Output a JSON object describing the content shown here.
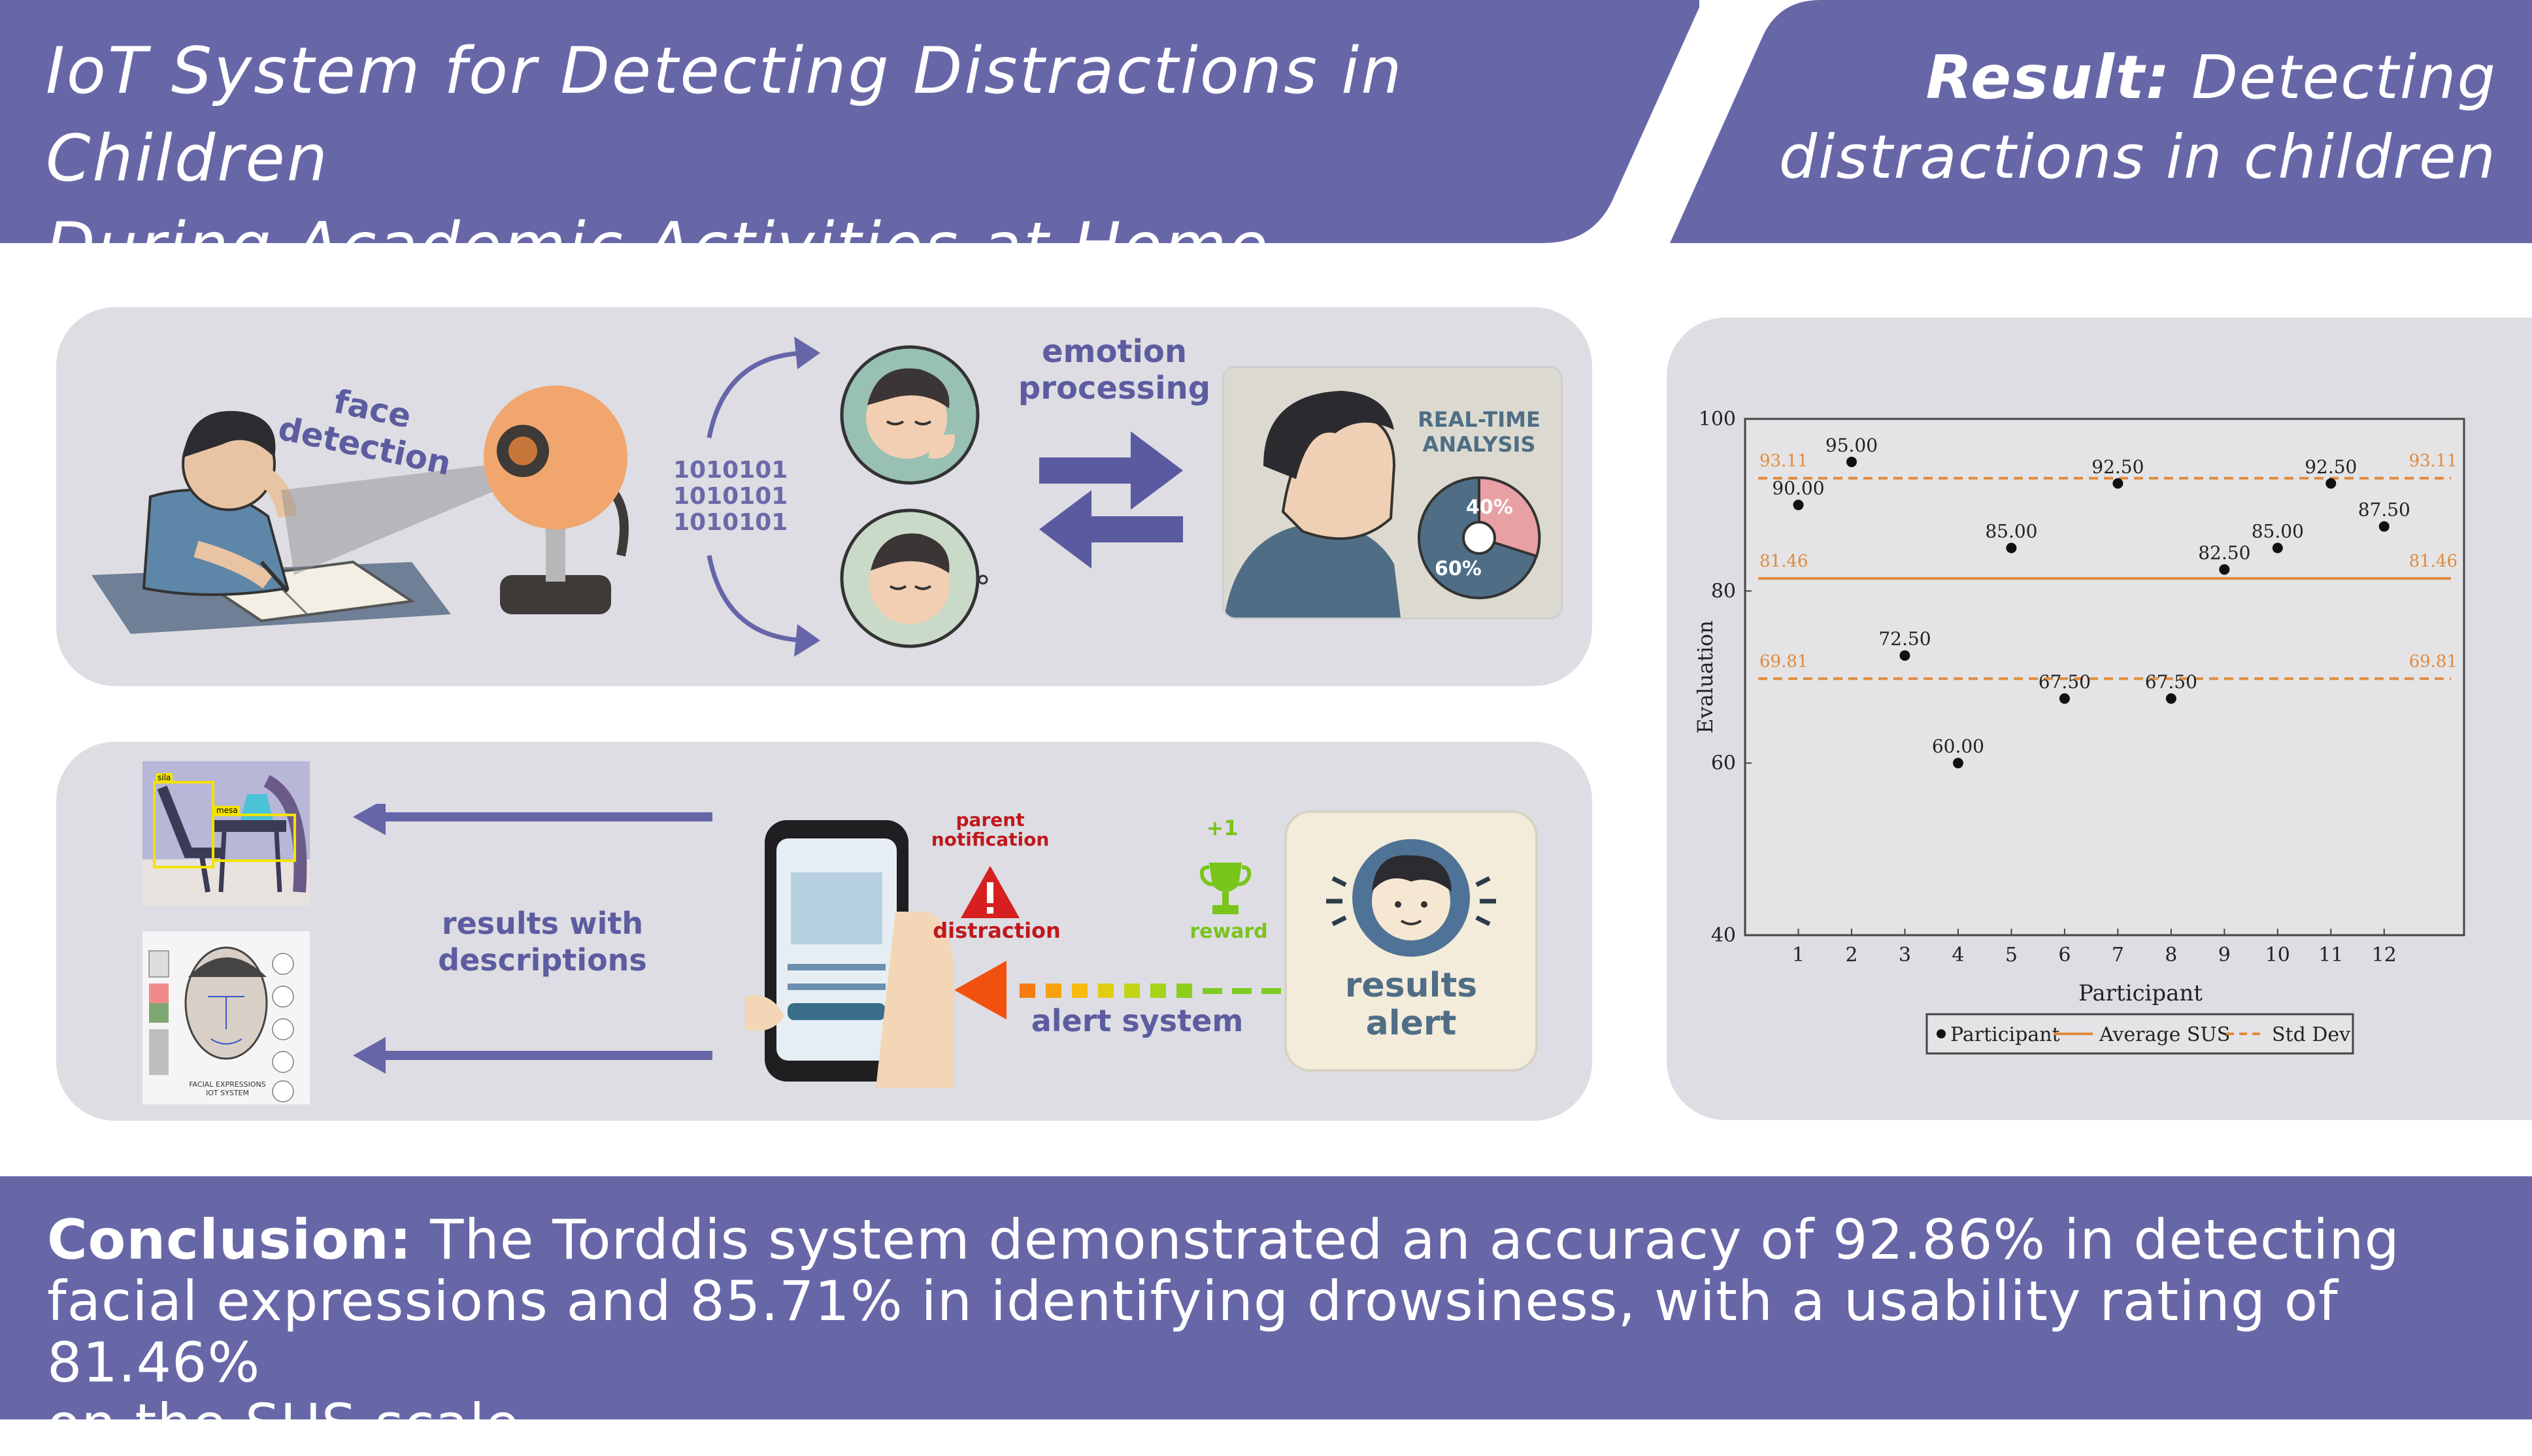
{
  "title": {
    "line1": "IoT System for Detecting Distractions in Children",
    "line2": "During Academic Activities at Home"
  },
  "result": {
    "label": "Result:",
    "text_part1": "Detecting",
    "text_part2": "distractions in children"
  },
  "top_panel": {
    "face_detection": "face detection",
    "binary": [
      "1010101",
      "1010101",
      "1010101"
    ],
    "emotion_processing_1": "emotion",
    "emotion_processing_2": "processing",
    "realtime_1": "REAL-TIME",
    "realtime_2": "ANALYSIS",
    "pie_large": "60%",
    "pie_small": "40%"
  },
  "bottom_panel": {
    "results_with_desc_1": "results with",
    "results_with_desc_2": "descriptions",
    "parent_notification_1": "parent",
    "parent_notification_2": "notification",
    "distraction": "distraction",
    "reward_plus": "+1",
    "reward": "reward",
    "alert_system": "alert system",
    "results_alert_1": "results",
    "results_alert_2": "alert",
    "facial_caption_1": "FACIAL EXPRESSIONS",
    "facial_caption_2": "IOT SYSTEM",
    "det_tag_1": "sila",
    "det_tag_2": "mesa"
  },
  "conclusion": {
    "label": "Conclusion:",
    "line1": "The Torddis system demonstrated an accuracy of 92.86% in detecting",
    "line2": "facial expressions and 85.71% in identifying drowsiness, with a usability rating of 81.46%",
    "line3": "on the SUS scale."
  },
  "colors": {
    "banner": "#6767a8",
    "panel": "#dddde3",
    "mean_line": "#e08a3c",
    "std_line": "#e08a3c",
    "points": "#111111"
  },
  "chart_data": {
    "type": "scatter",
    "xlabel": "Participant",
    "ylabel": "Evaluation",
    "ylim": [
      40,
      100
    ],
    "yticks": [
      40,
      60,
      80,
      100
    ],
    "xticks": [
      1,
      2,
      3,
      4,
      5,
      6,
      7,
      8,
      9,
      10,
      11,
      12
    ],
    "x": [
      1,
      2,
      3,
      4,
      5,
      6,
      7,
      8,
      9,
      10,
      11,
      12
    ],
    "values": [
      90.0,
      95.0,
      72.5,
      60.0,
      85.0,
      67.5,
      92.5,
      67.5,
      82.5,
      85.0,
      92.5,
      87.5
    ],
    "point_labels": [
      "90.00",
      "95.00",
      "72.50",
      "60.00",
      "85.00",
      "67.50",
      "92.50",
      "67.50",
      "82.50",
      "85.00",
      "92.50",
      "87.50"
    ],
    "mean": 81.46,
    "mean_label": "81.46",
    "std_upper": 93.11,
    "std_upper_label": "93.11",
    "std_lower": 69.81,
    "std_lower_label": "69.81",
    "legend": [
      "Participant",
      "Average SUS",
      "Std Dev"
    ],
    "legend_position": "bottom"
  }
}
